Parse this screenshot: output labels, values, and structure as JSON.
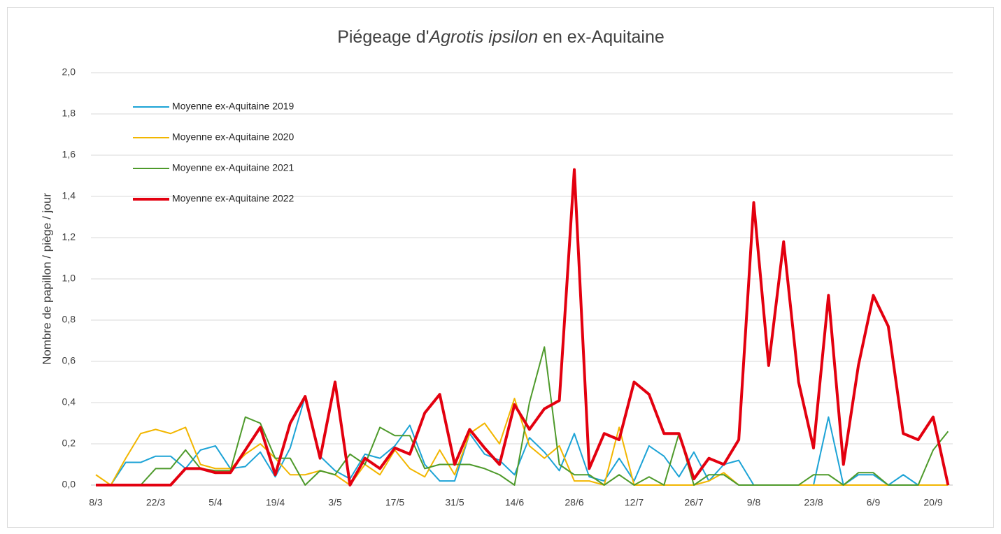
{
  "chart_data": {
    "type": "line",
    "title": {
      "parts": [
        "Piégeage d'",
        "Agrotis ipsilon",
        " en ex-Aquitaine"
      ]
    },
    "y_label": "Nombre de papillon / piège / jour",
    "categories": [
      "8/3",
      null,
      null,
      null,
      "22/3",
      null,
      null,
      null,
      "5/4",
      null,
      null,
      null,
      "19/4",
      null,
      null,
      null,
      "3/5",
      null,
      null,
      null,
      "17/5",
      null,
      null,
      null,
      "31/5",
      null,
      null,
      null,
      "14/6",
      null,
      null,
      null,
      "28/6",
      null,
      null,
      null,
      "12/7",
      null,
      null,
      null,
      "26/7",
      null,
      null,
      null,
      "9/8",
      null,
      null,
      null,
      "23/8",
      null,
      null,
      null,
      "6/9",
      null,
      null,
      null,
      "20/9",
      null
    ],
    "ylim": [
      0,
      2
    ],
    "yticks": [
      {
        "value": 0,
        "label": "0,0"
      },
      {
        "value": 0.2,
        "label": "0,2"
      },
      {
        "value": 0.4,
        "label": "0,4"
      },
      {
        "value": 0.6,
        "label": "0,6"
      },
      {
        "value": 0.8,
        "label": "0,8"
      },
      {
        "value": 1,
        "label": "1,0"
      },
      {
        "value": 1.2,
        "label": "1,2"
      },
      {
        "value": 1.4,
        "label": "1,4"
      },
      {
        "value": 1.6,
        "label": "1,6"
      },
      {
        "value": 1.8,
        "label": "1,8"
      },
      {
        "value": 2,
        "label": "2,0"
      }
    ],
    "grid": true,
    "legend": "top-left",
    "series": [
      {
        "name": "Moyenne ex-Aquitaine 2019",
        "color": "#1ca3d6",
        "width": 2,
        "values": [
          0,
          0,
          0.11,
          0.11,
          0.14,
          0.14,
          0.08,
          0.17,
          0.19,
          0.08,
          0.09,
          0.16,
          0.04,
          0.18,
          0.43,
          0.14,
          0.07,
          0.03,
          0.15,
          0.13,
          0.19,
          0.29,
          0.1,
          0.02,
          0.02,
          0.25,
          0.15,
          0.12,
          0.05,
          0.23,
          0.16,
          0.07,
          0.25,
          0.04,
          0.02,
          0.13,
          0.02,
          0.19,
          0.14,
          0.04,
          0.16,
          0.02,
          0.1,
          0.12,
          0,
          0,
          0,
          0,
          0,
          0.33,
          0,
          0.05,
          0.05,
          0,
          0.05,
          0,
          0,
          0
        ]
      },
      {
        "name": "Moyenne ex-Aquitaine 2020",
        "color": "#f2b600",
        "width": 2,
        "values": [
          0.05,
          0,
          0.13,
          0.25,
          0.27,
          0.25,
          0.28,
          0.1,
          0.08,
          0.08,
          0.15,
          0.2,
          0.13,
          0.05,
          0.05,
          0.07,
          0.05,
          0,
          0.1,
          0.05,
          0.17,
          0.08,
          0.04,
          0.17,
          0.05,
          0.25,
          0.3,
          0.2,
          0.42,
          0.19,
          0.13,
          0.19,
          0.02,
          0.02,
          0,
          0.28,
          0,
          0,
          0,
          0,
          0,
          0.02,
          0.06,
          0,
          0,
          0,
          0,
          0,
          0,
          0,
          0,
          0,
          0,
          0,
          0,
          0,
          0,
          0
        ]
      },
      {
        "name": "Moyenne ex-Aquitaine 2021",
        "color": "#4e9a2b",
        "width": 2,
        "values": [
          0,
          0,
          0,
          0,
          0.08,
          0.08,
          0.17,
          0.08,
          0.07,
          0.07,
          0.33,
          0.3,
          0.13,
          0.13,
          0,
          0.07,
          0.05,
          0.15,
          0.1,
          0.28,
          0.24,
          0.24,
          0.08,
          0.1,
          0.1,
          0.1,
          0.08,
          0.05,
          0,
          0.4,
          0.67,
          0.1,
          0.05,
          0.05,
          0,
          0.05,
          0,
          0.04,
          0,
          0.25,
          0,
          0.05,
          0.05,
          0,
          0,
          0,
          0,
          0,
          0.05,
          0.05,
          0,
          0.06,
          0.06,
          0,
          0,
          0,
          0.17,
          0.26
        ]
      },
      {
        "name": "Moyenne ex-Aquitaine 2022",
        "color": "#e3000f",
        "width": 4,
        "values": [
          0,
          0,
          0,
          0,
          0,
          0,
          0.08,
          0.08,
          0.06,
          0.06,
          0.17,
          0.28,
          0.05,
          0.3,
          0.43,
          0.13,
          0.5,
          0,
          0.13,
          0.08,
          0.18,
          0.15,
          0.35,
          0.44,
          0.1,
          0.27,
          0.18,
          0.1,
          0.39,
          0.27,
          0.37,
          0.41,
          1.53,
          0.08,
          0.25,
          0.22,
          0.5,
          0.44,
          0.25,
          0.25,
          0.03,
          0.13,
          0.1,
          0.22,
          1.37,
          0.58,
          1.18,
          0.5,
          0.18,
          0.92,
          0.1,
          0.58,
          0.92,
          0.77,
          0.25,
          0.22,
          0.33,
          0
        ]
      }
    ]
  }
}
